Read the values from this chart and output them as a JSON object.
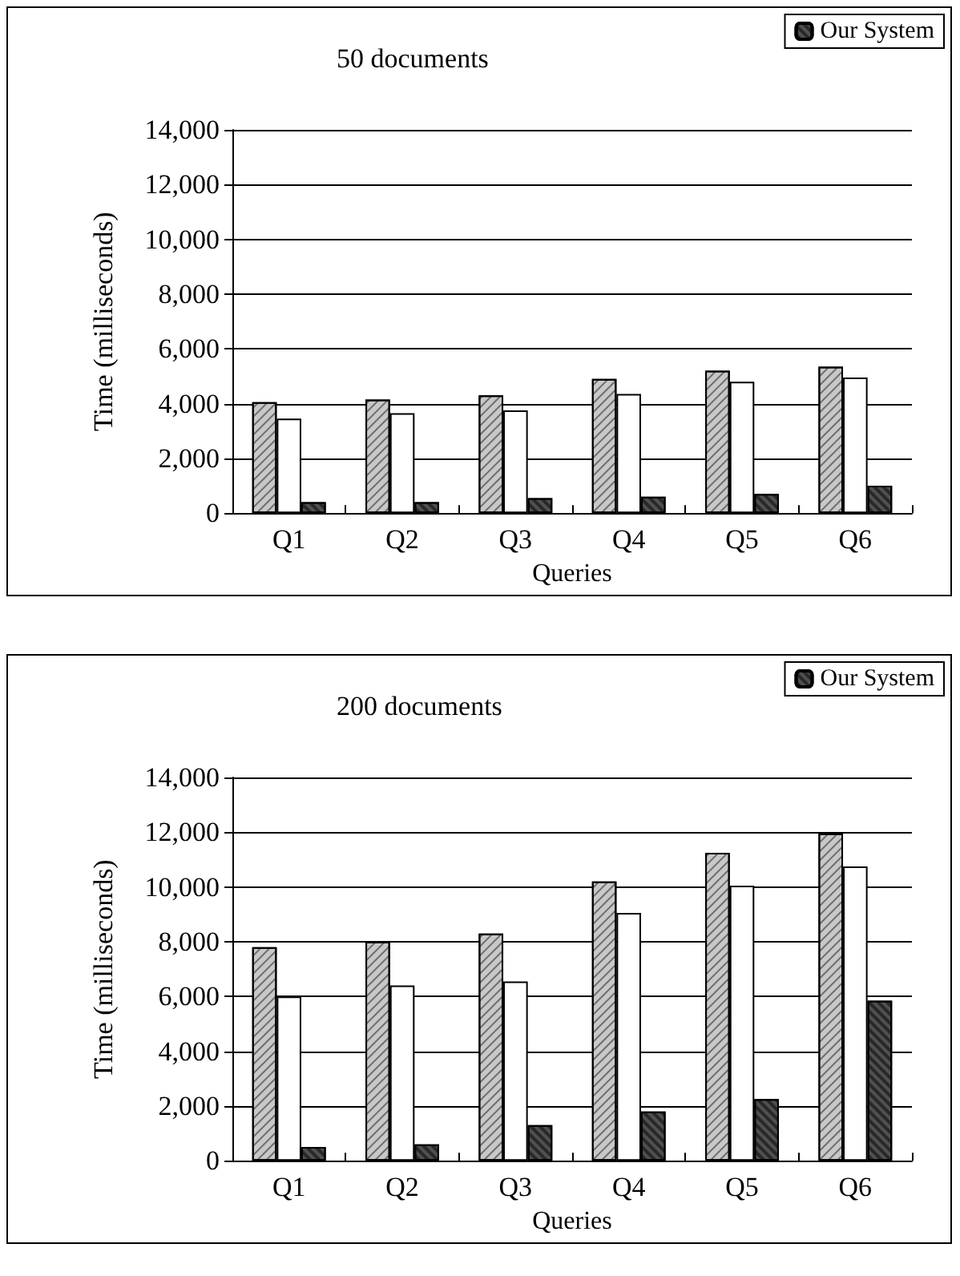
{
  "chart_data": [
    {
      "type": "bar",
      "title": "50 documents",
      "xlabel": "Queries",
      "ylabel": "Time (milliseconds)",
      "categories": [
        "Q1",
        "Q2",
        "Q3",
        "Q4",
        "Q5",
        "Q6"
      ],
      "series": [
        {
          "color": "#c8c8c8",
          "values": [
            4050,
            4150,
            4300,
            4900,
            5200,
            5350
          ]
        },
        {
          "color": "#ffffff",
          "values": [
            3450,
            3650,
            3750,
            4350,
            4800,
            4950
          ]
        },
        {
          "name": "Our System",
          "color": "#505050",
          "values": [
            400,
            400,
            550,
            600,
            700,
            1000
          ]
        }
      ],
      "ylim": [
        0,
        14000
      ],
      "yticks": [
        {
          "value": 0,
          "label": "0"
        },
        {
          "value": 2000,
          "label": "2,000"
        },
        {
          "value": 4000,
          "label": "4,000"
        },
        {
          "value": 6000,
          "label": "6,000"
        },
        {
          "value": 8000,
          "label": "8,000"
        },
        {
          "value": 10000,
          "label": "10,000"
        },
        {
          "value": 12000,
          "label": "12,000"
        },
        {
          "value": 14000,
          "label": "14,000"
        }
      ],
      "grid": "y",
      "legend": "top right"
    },
    {
      "type": "bar",
      "title": "200 documents",
      "xlabel": "Queries",
      "ylabel": "Time (milliseconds)",
      "categories": [
        "Q1",
        "Q2",
        "Q3",
        "Q4",
        "Q5",
        "Q6"
      ],
      "series": [
        {
          "color": "#c8c8c8",
          "values": [
            7800,
            8000,
            8300,
            10200,
            11250,
            11950
          ]
        },
        {
          "color": "#ffffff",
          "values": [
            6000,
            6400,
            6550,
            9050,
            10050,
            10750
          ]
        },
        {
          "name": "Our System",
          "color": "#505050",
          "values": [
            500,
            600,
            1300,
            1800,
            2250,
            5850
          ]
        }
      ],
      "ylim": [
        0,
        14000
      ],
      "yticks": [
        {
          "value": 0,
          "label": "0"
        },
        {
          "value": 2000,
          "label": "2,000"
        },
        {
          "value": 4000,
          "label": "4,000"
        },
        {
          "value": 6000,
          "label": "6,000"
        },
        {
          "value": 8000,
          "label": "8,000"
        },
        {
          "value": 10000,
          "label": "10,000"
        },
        {
          "value": 12000,
          "label": "12,000"
        },
        {
          "value": 14000,
          "label": "14,000"
        }
      ],
      "grid": "y",
      "legend": "top right"
    }
  ]
}
